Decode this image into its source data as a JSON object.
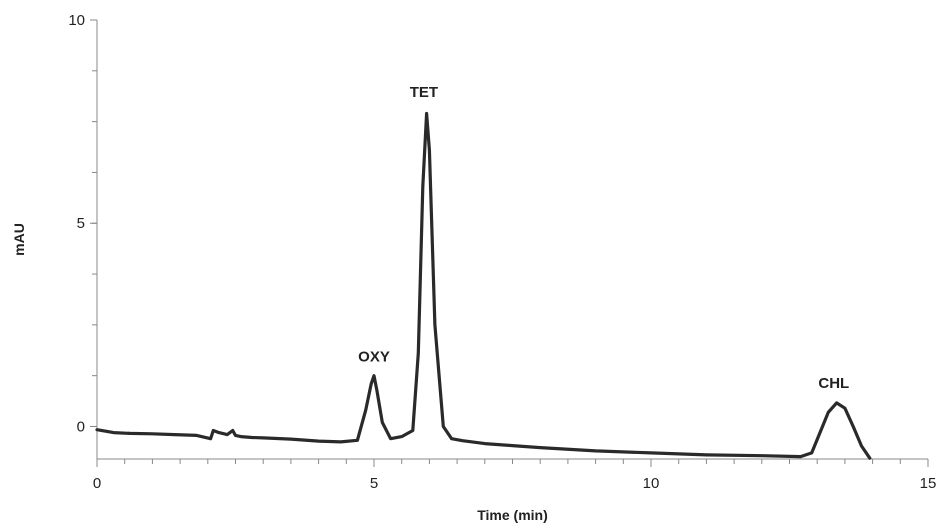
{
  "chart_data": {
    "type": "line",
    "title": "",
    "xlabel": "Time (min)",
    "ylabel": "mAU",
    "xlim": [
      0,
      15
    ],
    "ylim": [
      -0.8,
      10
    ],
    "x_ticks": [
      0,
      5,
      10,
      15
    ],
    "x_tick_labels": [
      "0",
      "5",
      "10",
      "15"
    ],
    "y_ticks": [
      0,
      5,
      10
    ],
    "y_tick_labels": [
      "0",
      "5",
      "10"
    ],
    "x_minor_step": 0.5,
    "y_minor_step": 1.25,
    "grid": false,
    "line_color": "#2a2a2a",
    "series": [
      {
        "x": [
          0.0,
          0.3,
          0.6,
          1.0,
          1.4,
          1.8,
          2.05,
          2.1,
          2.2,
          2.35,
          2.45,
          2.5,
          2.6,
          2.8,
          3.0,
          3.5,
          4.0,
          4.4,
          4.7,
          4.85,
          4.95,
          5.0,
          5.05,
          5.15,
          5.3,
          5.5,
          5.7,
          5.8,
          5.88,
          5.95,
          6.0,
          6.1,
          6.25,
          6.4,
          6.6,
          7.0,
          7.5,
          8.0,
          9.0,
          10.0,
          11.0,
          12.0,
          12.7,
          12.9,
          13.05,
          13.2,
          13.35,
          13.5,
          13.65,
          13.8,
          13.95
        ],
        "y": [
          -0.08,
          -0.15,
          -0.17,
          -0.18,
          -0.2,
          -0.22,
          -0.3,
          -0.1,
          -0.15,
          -0.2,
          -0.1,
          -0.22,
          -0.25,
          -0.27,
          -0.28,
          -0.31,
          -0.36,
          -0.38,
          -0.34,
          0.4,
          1.05,
          1.25,
          0.9,
          0.1,
          -0.3,
          -0.25,
          -0.1,
          1.8,
          5.9,
          7.7,
          6.8,
          2.5,
          0.0,
          -0.3,
          -0.35,
          -0.42,
          -0.47,
          -0.52,
          -0.6,
          -0.65,
          -0.7,
          -0.72,
          -0.74,
          -0.65,
          -0.15,
          0.35,
          0.58,
          0.45,
          0.0,
          -0.48,
          -0.78
        ]
      }
    ],
    "annotations": [
      {
        "text": "OXY",
        "x": 5.0,
        "y": 1.6
      },
      {
        "text": "TET",
        "x": 5.9,
        "y": 8.1
      },
      {
        "text": "CHL",
        "x": 13.3,
        "y": 0.95
      }
    ]
  }
}
